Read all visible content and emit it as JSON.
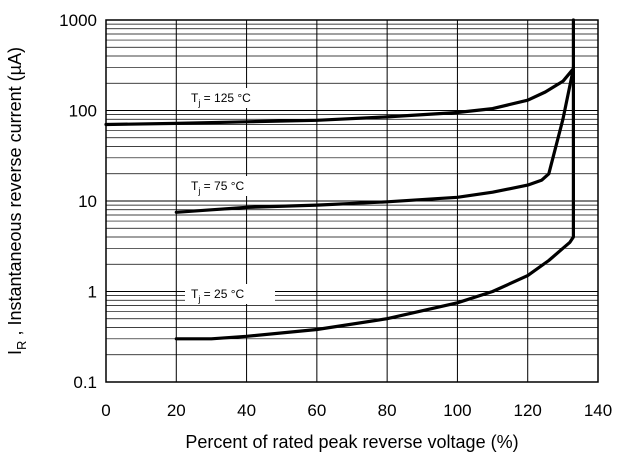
{
  "chart_data": {
    "type": "line",
    "title": "",
    "xlabel": "Percent of rated peak reverse voltage (%)",
    "ylabel": {
      "symbol": "I",
      "subscript": "R",
      "text": " , Instantaneous reverse current (µA)"
    },
    "xlim": [
      0,
      140
    ],
    "ylim": [
      0.1,
      1000
    ],
    "y_scale": "log",
    "grid": true,
    "x_ticks": [
      "0",
      "20",
      "40",
      "60",
      "80",
      "100",
      "120",
      "140"
    ],
    "y_ticks": [
      "0.1",
      "1",
      "10",
      "100",
      "1000"
    ],
    "series": [
      {
        "name": "T_j = 125 °C",
        "label": {
          "symbol": "T",
          "subscript": "j",
          "text": " = 125 °C"
        },
        "x": [
          0,
          20,
          40,
          60,
          80,
          100,
          110,
          120,
          125,
          130,
          133,
          133,
          133
        ],
        "y": [
          70,
          72,
          75,
          78,
          85,
          95,
          105,
          130,
          160,
          210,
          290,
          1000,
          1000
        ]
      },
      {
        "name": "T_j = 75 °C",
        "label": {
          "symbol": "T",
          "subscript": "j",
          "text": " = 75 °C"
        },
        "x": [
          20,
          30,
          40,
          60,
          80,
          100,
          110,
          120,
          124,
          126,
          130,
          133
        ],
        "y": [
          7.5,
          8,
          8.5,
          9,
          9.8,
          11,
          12.5,
          15,
          17,
          20,
          80,
          290
        ]
      },
      {
        "name": "T_j = 25 °C",
        "label": {
          "symbol": "T",
          "subscript": "j",
          "text": " = 25 °C"
        },
        "x": [
          20,
          30,
          40,
          60,
          80,
          100,
          110,
          120,
          126,
          130,
          132,
          133,
          133
        ],
        "y": [
          0.3,
          0.3,
          0.32,
          0.38,
          0.5,
          0.75,
          1,
          1.5,
          2.2,
          3,
          3.5,
          4,
          290
        ]
      }
    ]
  }
}
